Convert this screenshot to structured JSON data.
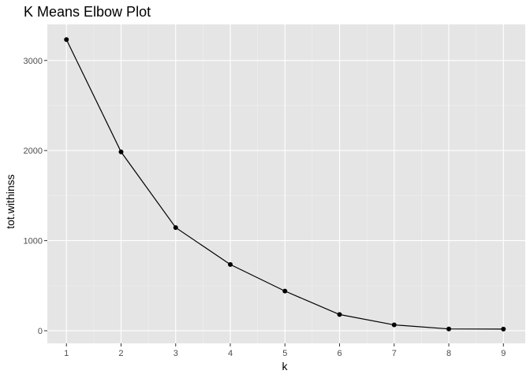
{
  "chart_data": {
    "type": "line",
    "title": "K Means Elbow Plot",
    "xlabel": "k",
    "ylabel": "tot.withinss",
    "x": [
      1,
      2,
      3,
      4,
      5,
      6,
      7,
      8,
      9
    ],
    "y": [
      3232,
      1985,
      1145,
      735,
      440,
      180,
      65,
      20,
      18
    ],
    "xticks": [
      1,
      2,
      3,
      4,
      5,
      6,
      7,
      8,
      9
    ],
    "yticks": [
      0,
      1000,
      2000,
      3000
    ],
    "xlim": [
      0.65,
      9.4
    ],
    "ylim": [
      -140,
      3400
    ],
    "grid": true,
    "markers": true,
    "colors": {
      "panel_background": "#e5e5e5",
      "grid_major": "#ffffff",
      "grid_minor": "#f0f0f0",
      "line": "#000000",
      "point": "#000000",
      "tick_text": "#4d4d4d",
      "tick_mark": "#333333"
    }
  }
}
